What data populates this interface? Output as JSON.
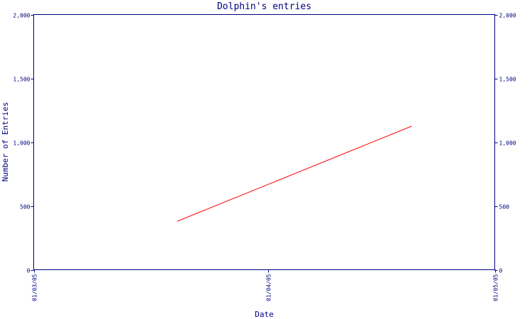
{
  "chart_data": {
    "type": "line",
    "title": "Dolphin's entries",
    "xlabel": "Date",
    "ylabel": "Number of Entries",
    "x_ticks": [
      "01/03/05",
      "01/04/05",
      "01/05/05"
    ],
    "y_ticks": [
      "0",
      "500",
      "1,000",
      "1,500",
      "2,000"
    ],
    "y_tick_values": [
      0,
      500,
      1000,
      1500,
      2000
    ],
    "ylim": [
      0,
      2000
    ],
    "xlim": [
      "01/03/05",
      "01/05/05"
    ],
    "series": [
      {
        "x": [
          "2005-03-20",
          "2005-04-20"
        ],
        "values": [
          380,
          1125
        ],
        "color": "#ff0000"
      }
    ],
    "grid": false,
    "axis_color": "#000080",
    "text_color": "#000080",
    "mirror_y_axis": true
  }
}
